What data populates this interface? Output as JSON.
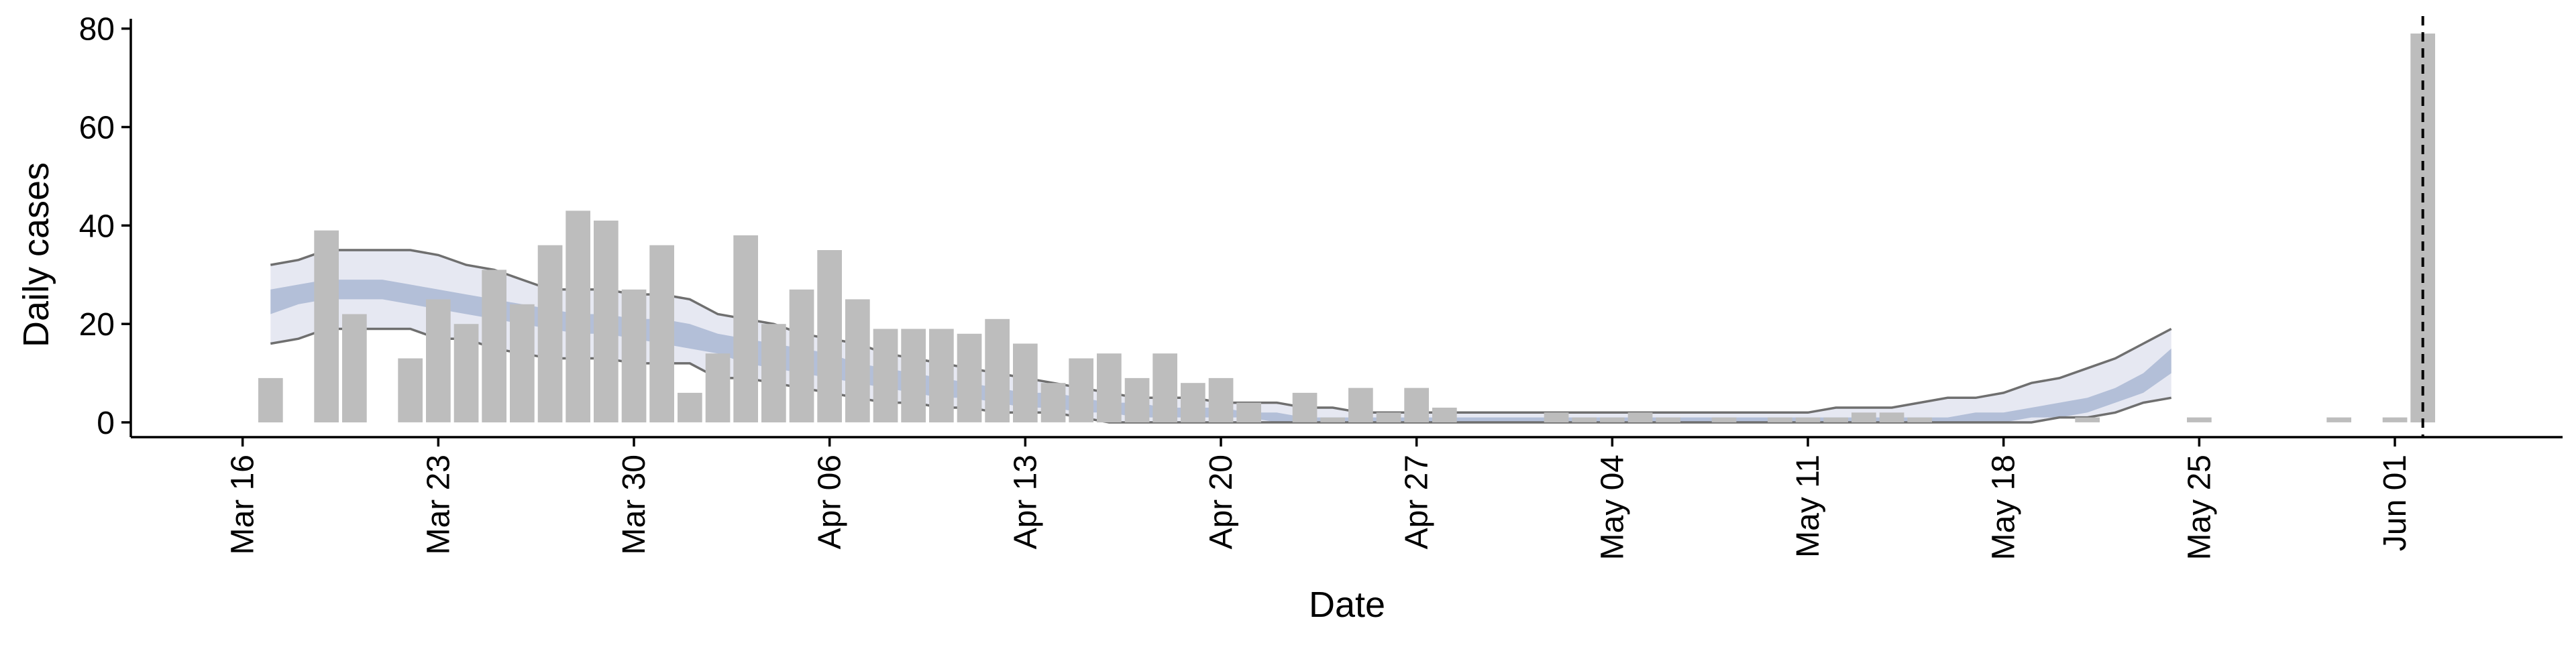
{
  "chart_data": {
    "type": "bar",
    "xlabel": "Date",
    "ylabel": "Daily cases",
    "ylim": [
      0,
      80
    ],
    "y_ticks": [
      0,
      20,
      40,
      60,
      80
    ],
    "x_ticks": [
      {
        "date": "2020-03-16",
        "label": "Mar 16"
      },
      {
        "date": "2020-03-23",
        "label": "Mar 23"
      },
      {
        "date": "2020-03-30",
        "label": "Mar 30"
      },
      {
        "date": "2020-04-06",
        "label": "Apr 06"
      },
      {
        "date": "2020-04-13",
        "label": "Apr 13"
      },
      {
        "date": "2020-04-20",
        "label": "Apr 20"
      },
      {
        "date": "2020-04-27",
        "label": "Apr 27"
      },
      {
        "date": "2020-05-04",
        "label": "May 04"
      },
      {
        "date": "2020-05-11",
        "label": "May 11"
      },
      {
        "date": "2020-05-18",
        "label": "May 18"
      },
      {
        "date": "2020-05-25",
        "label": "May 25"
      },
      {
        "date": "2020-06-01",
        "label": "Jun 01"
      }
    ],
    "xlim": [
      "2020-03-12",
      "2020-06-07"
    ],
    "grid": false,
    "bars": {
      "color": "#bdbdbd",
      "data": [
        [
          "2020-03-17",
          9
        ],
        [
          "2020-03-19",
          39
        ],
        [
          "2020-03-20",
          22
        ],
        [
          "2020-03-22",
          13
        ],
        [
          "2020-03-23",
          25
        ],
        [
          "2020-03-24",
          20
        ],
        [
          "2020-03-25",
          31
        ],
        [
          "2020-03-26",
          24
        ],
        [
          "2020-03-27",
          36
        ],
        [
          "2020-03-28",
          43
        ],
        [
          "2020-03-29",
          41
        ],
        [
          "2020-03-30",
          27
        ],
        [
          "2020-03-31",
          36
        ],
        [
          "2020-04-01",
          6
        ],
        [
          "2020-04-02",
          14
        ],
        [
          "2020-04-03",
          38
        ],
        [
          "2020-04-04",
          20
        ],
        [
          "2020-04-05",
          27
        ],
        [
          "2020-04-06",
          35
        ],
        [
          "2020-04-07",
          25
        ],
        [
          "2020-04-08",
          19
        ],
        [
          "2020-04-09",
          19
        ],
        [
          "2020-04-10",
          19
        ],
        [
          "2020-04-11",
          18
        ],
        [
          "2020-04-12",
          21
        ],
        [
          "2020-04-13",
          16
        ],
        [
          "2020-04-14",
          8
        ],
        [
          "2020-04-15",
          13
        ],
        [
          "2020-04-16",
          14
        ],
        [
          "2020-04-17",
          9
        ],
        [
          "2020-04-18",
          14
        ],
        [
          "2020-04-19",
          8
        ],
        [
          "2020-04-20",
          9
        ],
        [
          "2020-04-21",
          4
        ],
        [
          "2020-04-23",
          6
        ],
        [
          "2020-04-24",
          1
        ],
        [
          "2020-04-25",
          7
        ],
        [
          "2020-04-26",
          2
        ],
        [
          "2020-04-27",
          7
        ],
        [
          "2020-04-28",
          3
        ],
        [
          "2020-05-02",
          2
        ],
        [
          "2020-05-03",
          1
        ],
        [
          "2020-05-04",
          1
        ],
        [
          "2020-05-05",
          2
        ],
        [
          "2020-05-06",
          1
        ],
        [
          "2020-05-08",
          1
        ],
        [
          "2020-05-10",
          1
        ],
        [
          "2020-05-11",
          1
        ],
        [
          "2020-05-12",
          1
        ],
        [
          "2020-05-13",
          2
        ],
        [
          "2020-05-14",
          2
        ],
        [
          "2020-05-15",
          1
        ],
        [
          "2020-05-21",
          1
        ],
        [
          "2020-05-25",
          1
        ],
        [
          "2020-05-30",
          1
        ],
        [
          "2020-06-01",
          1
        ],
        [
          "2020-06-02",
          79
        ]
      ]
    },
    "ribbon": {
      "x": [
        "2020-03-17",
        "2020-03-18",
        "2020-03-19",
        "2020-03-20",
        "2020-03-21",
        "2020-03-22",
        "2020-03-23",
        "2020-03-24",
        "2020-03-25",
        "2020-03-26",
        "2020-03-27",
        "2020-03-28",
        "2020-03-29",
        "2020-03-30",
        "2020-03-31",
        "2020-04-01",
        "2020-04-02",
        "2020-04-03",
        "2020-04-04",
        "2020-04-05",
        "2020-04-06",
        "2020-04-07",
        "2020-04-08",
        "2020-04-09",
        "2020-04-10",
        "2020-04-11",
        "2020-04-12",
        "2020-04-13",
        "2020-04-14",
        "2020-04-15",
        "2020-04-16",
        "2020-04-17",
        "2020-04-18",
        "2020-04-19",
        "2020-04-20",
        "2020-04-21",
        "2020-04-22",
        "2020-04-23",
        "2020-04-24",
        "2020-04-25",
        "2020-04-26",
        "2020-04-27",
        "2020-04-28",
        "2020-04-29",
        "2020-04-30",
        "2020-05-01",
        "2020-05-02",
        "2020-05-03",
        "2020-05-04",
        "2020-05-05",
        "2020-05-06",
        "2020-05-07",
        "2020-05-08",
        "2020-05-09",
        "2020-05-10",
        "2020-05-11",
        "2020-05-12",
        "2020-05-13",
        "2020-05-14",
        "2020-05-15",
        "2020-05-16",
        "2020-05-17",
        "2020-05-18",
        "2020-05-19",
        "2020-05-20",
        "2020-05-21",
        "2020-05-22",
        "2020-05-23",
        "2020-05-24"
      ],
      "lower_90": [
        16,
        17,
        19,
        19,
        19,
        19,
        17,
        17,
        15,
        14,
        13,
        13,
        13,
        12,
        12,
        12,
        9,
        9,
        8,
        7,
        6,
        5,
        4,
        4,
        3,
        3,
        2,
        2,
        2,
        1,
        0,
        0,
        0,
        0,
        0,
        0,
        0,
        0,
        0,
        0,
        0,
        0,
        0,
        0,
        0,
        0,
        0,
        0,
        0,
        0,
        0,
        0,
        0,
        0,
        0,
        0,
        0,
        0,
        0,
        0,
        0,
        0,
        0,
        0,
        1,
        1,
        2,
        4,
        5
      ],
      "lower_50": [
        22,
        24,
        25,
        25,
        25,
        24,
        23,
        22,
        21,
        20,
        19,
        18,
        18,
        17,
        16,
        15,
        14,
        12,
        11,
        10,
        9,
        8,
        7,
        6,
        5,
        5,
        4,
        3,
        3,
        2,
        2,
        1,
        1,
        1,
        1,
        1,
        0,
        0,
        0,
        0,
        0,
        0,
        0,
        0,
        0,
        0,
        0,
        0,
        0,
        0,
        0,
        0,
        0,
        0,
        0,
        0,
        0,
        0,
        0,
        0,
        0,
        0,
        0,
        1,
        1,
        2,
        4,
        6,
        10
      ],
      "upper_50": [
        27,
        28,
        29,
        29,
        29,
        28,
        27,
        26,
        25,
        24,
        23,
        22,
        22,
        21,
        21,
        20,
        18,
        17,
        16,
        15,
        14,
        12,
        11,
        10,
        9,
        8,
        7,
        6,
        6,
        5,
        4,
        4,
        3,
        3,
        3,
        2,
        2,
        1,
        1,
        1,
        1,
        1,
        1,
        1,
        1,
        1,
        1,
        1,
        1,
        1,
        1,
        1,
        1,
        1,
        1,
        1,
        1,
        1,
        1,
        1,
        1,
        2,
        2,
        3,
        4,
        5,
        7,
        10,
        15
      ],
      "upper_90": [
        32,
        33,
        35,
        35,
        35,
        35,
        34,
        32,
        31,
        29,
        27,
        27,
        27,
        26,
        26,
        25,
        22,
        21,
        20,
        18,
        17,
        16,
        14,
        13,
        12,
        11,
        10,
        9,
        8,
        7,
        6,
        5,
        5,
        5,
        4,
        4,
        4,
        3,
        3,
        2,
        2,
        2,
        2,
        2,
        2,
        2,
        2,
        2,
        2,
        2,
        2,
        2,
        2,
        2,
        2,
        2,
        3,
        3,
        3,
        4,
        5,
        5,
        6,
        8,
        9,
        11,
        13,
        16,
        19
      ],
      "color_90": "#e6e8f2",
      "color_50": "#b3bfd8",
      "line_color": "#6f6f6f"
    },
    "vline": {
      "date": "2020-06-02",
      "style": "dashed",
      "color": "#000000"
    }
  }
}
